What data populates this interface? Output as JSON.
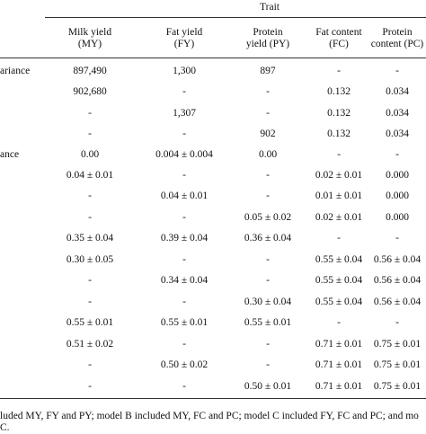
{
  "table": {
    "group_header": "Trait",
    "columns": [
      "Milk yield\n(MY)",
      "Fat yield\n(FY)",
      "Protein\nyield (PY)",
      "Fat content\n(FC)",
      "Protein\ncontent (PC)"
    ],
    "rows": [
      {
        "label": "ariance",
        "cells": [
          "897,490",
          "1,300",
          "897",
          "-",
          "-"
        ]
      },
      {
        "cells": [
          "902,680",
          "-",
          "-",
          "0.132",
          "0.034"
        ]
      },
      {
        "cells": [
          "-",
          "1,307",
          "-",
          "0.132",
          "0.034"
        ]
      },
      {
        "cells": [
          "-",
          "-",
          "902",
          "0.132",
          "0.034"
        ]
      },
      {
        "label": "ance",
        "cells": [
          "0.00",
          "0.004 ± 0.004",
          "0.00",
          "-",
          "-"
        ]
      },
      {
        "cells": [
          "0.04 ± 0.01",
          "-",
          "-",
          "0.02 ± 0.01",
          "0.000"
        ]
      },
      {
        "cells": [
          "-",
          "0.04 ± 0.01",
          "-",
          "0.01 ± 0.01",
          "0.000"
        ]
      },
      {
        "cells": [
          "-",
          "-",
          "0.05 ± 0.02",
          "0.02 ± 0.01",
          "0.000"
        ]
      },
      {
        "cells": [
          "0.35 ± 0.04",
          "0.39 ± 0.04",
          "0.36 ± 0.04",
          "-",
          "-"
        ]
      },
      {
        "cells": [
          "0.30 ± 0.05",
          "-",
          "-",
          "0.55 ± 0.04",
          "0.56 ± 0.04"
        ]
      },
      {
        "cells": [
          "-",
          "0.34 ± 0.04",
          "-",
          "0.55 ± 0.04",
          "0.56 ± 0.04"
        ]
      },
      {
        "cells": [
          "-",
          "-",
          "0.30 ± 0.04",
          "0.55 ± 0.04",
          "0.56 ± 0.04"
        ]
      },
      {
        "cells": [
          "0.55 ± 0.01",
          "0.55 ± 0.01",
          "0.55 ± 0.01",
          "-",
          "-"
        ]
      },
      {
        "cells": [
          "0.51 ± 0.02",
          "-",
          "-",
          "0.71 ± 0.01",
          "0.75 ± 0.01"
        ]
      },
      {
        "cells": [
          "-",
          "0.50 ± 0.02",
          "-",
          "0.71 ± 0.01",
          "0.75 ± 0.01"
        ]
      },
      {
        "cells": [
          "-",
          "-",
          "0.50 ± 0.01",
          "0.71 ± 0.01",
          "0.75 ± 0.01"
        ]
      }
    ],
    "footnote": [
      "luded MY, FY and PY; model B included MY, FC and PC; model C included FY, FC and PC; and mo",
      "C."
    ]
  }
}
